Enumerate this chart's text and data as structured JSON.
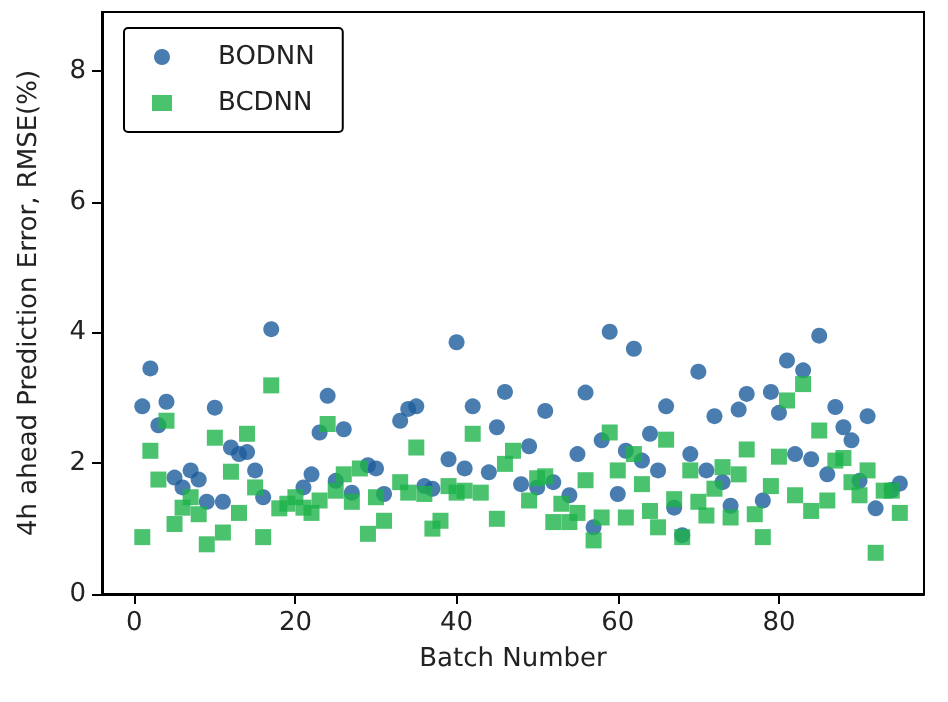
{
  "chart_data": {
    "type": "scatter",
    "xlabel": "Batch Number",
    "ylabel": "4h ahead Prediction Error, RMSE(%)",
    "xlim": [
      -4,
      98
    ],
    "xticks": [
      0,
      20,
      40,
      60,
      80
    ],
    "ylim": [
      0,
      8.9
    ],
    "yticks": [
      0,
      2,
      4,
      6,
      8
    ],
    "grid": false,
    "legend": "top left",
    "series": [
      {
        "name": "BODNN",
        "color": "#1c5c9c",
        "marker": "circle",
        "x": [
          1,
          2,
          3,
          4,
          5,
          6,
          7,
          8,
          9,
          10,
          11,
          12,
          13,
          14,
          15,
          16,
          17,
          21,
          22,
          23,
          24,
          25,
          26,
          27,
          29,
          30,
          31,
          33,
          34,
          35,
          36,
          37,
          39,
          40,
          41,
          42,
          44,
          45,
          46,
          48,
          49,
          50,
          51,
          52,
          54,
          55,
          56,
          57,
          58,
          59,
          60,
          61,
          62,
          63,
          64,
          65,
          66,
          67,
          68,
          69,
          70,
          71,
          72,
          73,
          74,
          75,
          76,
          78,
          79,
          80,
          81,
          82,
          83,
          84,
          85,
          86,
          87,
          88,
          89,
          90,
          91,
          92,
          94,
          95
        ],
        "values": [
          2.87,
          3.45,
          2.58,
          2.94,
          1.78,
          1.63,
          1.89,
          1.75,
          1.41,
          2.85,
          1.41,
          2.24,
          2.14,
          2.17,
          1.89,
          1.48,
          4.05,
          1.63,
          1.83,
          2.47,
          3.03,
          1.73,
          2.52,
          1.55,
          1.97,
          1.92,
          1.53,
          2.65,
          2.83,
          2.87,
          1.65,
          1.61,
          2.06,
          3.85,
          1.92,
          2.87,
          1.86,
          2.55,
          3.09,
          1.68,
          2.26,
          1.63,
          2.8,
          1.71,
          1.51,
          2.14,
          3.08,
          1.02,
          2.35,
          4.01,
          1.53,
          2.19,
          3.75,
          2.04,
          2.45,
          1.89,
          2.87,
          1.32,
          0.9,
          2.14,
          3.4,
          1.89,
          2.72,
          1.71,
          1.35,
          2.82,
          3.06,
          1.43,
          3.09,
          2.77,
          3.57,
          2.14,
          3.42,
          2.06,
          3.95,
          1.83,
          2.86,
          2.55,
          2.35,
          1.73,
          2.72,
          1.31,
          1.59,
          1.69
        ]
      },
      {
        "name": "BCDNN",
        "color": "#1db34a",
        "marker": "square",
        "x": [
          1,
          2,
          3,
          4,
          5,
          6,
          7,
          8,
          9,
          10,
          11,
          12,
          13,
          14,
          15,
          16,
          17,
          18,
          19,
          20,
          21,
          22,
          23,
          24,
          25,
          26,
          27,
          28,
          29,
          30,
          31,
          33,
          34,
          35,
          36,
          37,
          38,
          39,
          40,
          41,
          42,
          43,
          45,
          46,
          47,
          49,
          50,
          51,
          52,
          53,
          54,
          55,
          56,
          57,
          58,
          59,
          60,
          61,
          62,
          63,
          64,
          65,
          66,
          67,
          68,
          69,
          70,
          71,
          72,
          73,
          74,
          75,
          76,
          77,
          78,
          79,
          80,
          81,
          82,
          83,
          84,
          85,
          86,
          87,
          88,
          89,
          90,
          91,
          92,
          93,
          94,
          95
        ],
        "values": [
          0.87,
          2.19,
          1.75,
          2.65,
          1.07,
          1.32,
          1.48,
          1.22,
          0.76,
          2.39,
          0.94,
          1.87,
          1.24,
          2.45,
          1.63,
          0.87,
          3.19,
          1.31,
          1.38,
          1.48,
          1.32,
          1.24,
          1.43,
          2.6,
          1.58,
          1.83,
          1.41,
          1.92,
          0.92,
          1.48,
          1.12,
          1.71,
          1.55,
          2.24,
          1.53,
          1.0,
          1.12,
          1.65,
          1.55,
          1.58,
          2.45,
          1.55,
          1.15,
          1.99,
          2.19,
          1.43,
          1.77,
          1.8,
          1.1,
          1.38,
          1.1,
          1.24,
          1.74,
          0.82,
          1.17,
          2.47,
          1.89,
          1.17,
          2.14,
          1.68,
          1.27,
          1.02,
          2.36,
          1.45,
          0.87,
          1.89,
          1.41,
          1.2,
          1.61,
          1.94,
          1.17,
          1.83,
          2.21,
          1.22,
          0.87,
          1.65,
          2.1,
          2.96,
          1.51,
          3.21,
          1.27,
          2.5,
          1.43,
          2.04,
          2.08,
          1.71,
          1.51,
          1.89,
          0.63,
          1.58,
          1.58,
          1.24
        ]
      }
    ]
  }
}
